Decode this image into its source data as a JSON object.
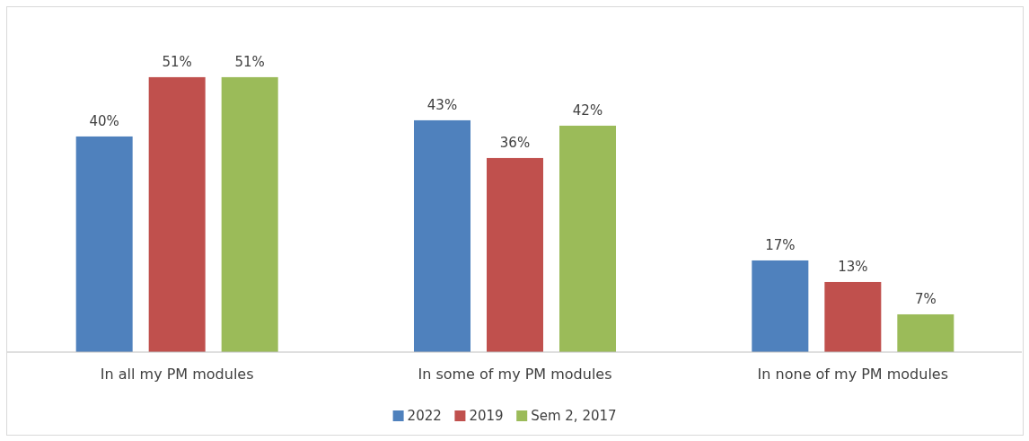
{
  "chart_data": {
    "type": "bar",
    "categories": [
      "In all my PM modules",
      "In some of my PM modules",
      "In none of my PM modules"
    ],
    "series": [
      {
        "name": "2022",
        "color": "#4f81bd",
        "values": [
          40,
          43,
          17
        ],
        "value_labels": [
          "40%",
          "43%",
          "17%"
        ]
      },
      {
        "name": "2019",
        "color": "#c0504d",
        "values": [
          51,
          36,
          13
        ],
        "value_labels": [
          "51%",
          "36%",
          "13%"
        ]
      },
      {
        "name": "Sem 2, 2017",
        "color": "#9bbb59",
        "values": [
          51,
          42,
          7
        ],
        "value_labels": [
          "51%",
          "42%",
          "7%"
        ]
      }
    ],
    "legend": "bottom"
  }
}
